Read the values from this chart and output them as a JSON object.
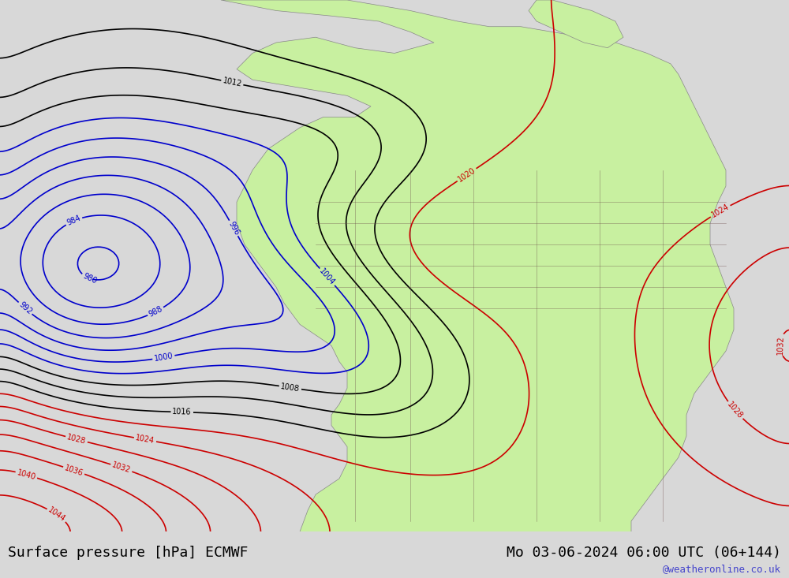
{
  "title_left": "Surface pressure [hPa] ECMWF",
  "title_right": "Mo 03-06-2024 06:00 UTC (06+144)",
  "watermark": "@weatheronline.co.uk",
  "background_color": "#e8e8e8",
  "land_color": "#c8f0a0",
  "ocean_color": "#e8e8e8",
  "title_fontsize": 13,
  "watermark_color": "#4444cc",
  "contour_interval": 4,
  "isobar_colors": {
    "black": "#000000",
    "blue": "#0000cc",
    "red": "#cc0000"
  }
}
